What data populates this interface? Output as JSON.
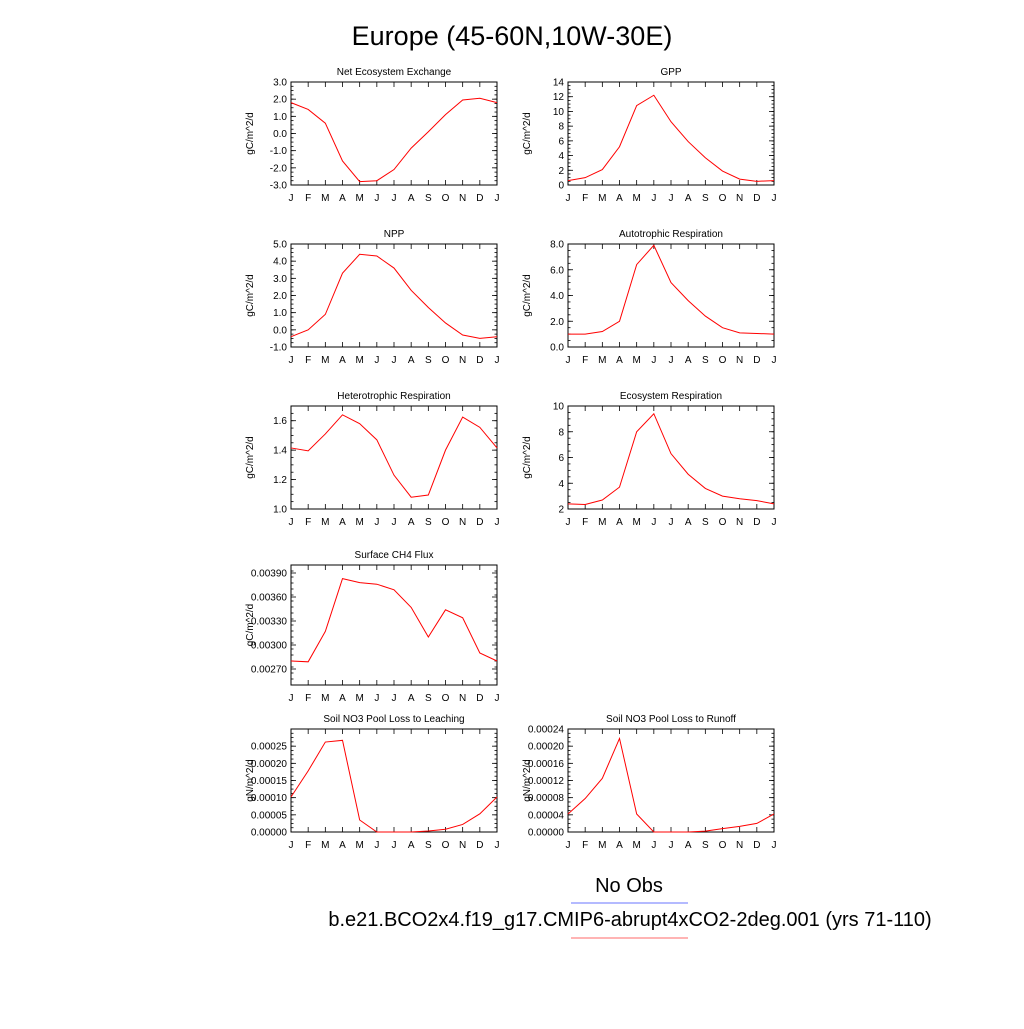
{
  "page": {
    "title": "Europe (45-60N,10W-30E)",
    "legend": {
      "entries": [
        {
          "label": "No Obs",
          "color": "#6a74ff"
        },
        {
          "label": "b.e21.BCO2x4.f19_g17.CMIP6-abrupt4xCO2-2deg.001 (yrs 71-110)",
          "color": "#ff6a6a"
        }
      ]
    }
  },
  "chart_data": [
    {
      "type": "line",
      "title": "Net Ecosystem Exchange",
      "ylabel": "gC/m^2/d",
      "categories": [
        "J",
        "F",
        "M",
        "A",
        "M",
        "J",
        "J",
        "A",
        "S",
        "O",
        "N",
        "D",
        "J"
      ],
      "ylim": [
        -3.0,
        3.0
      ],
      "yticks": [
        -3.0,
        -2.0,
        -1.0,
        0.0,
        1.0,
        2.0,
        3.0
      ],
      "yticklabels": [
        "-3.0",
        "-2.0",
        "-1.0",
        "0.0",
        "1.0",
        "2.0",
        "3.0"
      ],
      "series": [
        {
          "color": "#ff0000",
          "values": [
            1.8,
            1.4,
            0.6,
            -1.6,
            -2.8,
            -2.75,
            -2.1,
            -0.85,
            0.1,
            1.1,
            1.95,
            2.05,
            1.8
          ]
        }
      ]
    },
    {
      "type": "line",
      "title": "GPP",
      "ylabel": "gC/m^2/d",
      "categories": [
        "J",
        "F",
        "M",
        "A",
        "M",
        "J",
        "J",
        "A",
        "S",
        "O",
        "N",
        "D",
        "J"
      ],
      "ylim": [
        0,
        14
      ],
      "yticks": [
        0,
        2,
        4,
        6,
        8,
        10,
        12,
        14
      ],
      "yticklabels": [
        "0",
        "2",
        "4",
        "6",
        "8",
        "10",
        "12",
        "14"
      ],
      "series": [
        {
          "color": "#ff0000",
          "values": [
            0.6,
            1.0,
            2.1,
            5.2,
            10.8,
            12.2,
            8.6,
            5.9,
            3.7,
            1.9,
            0.8,
            0.5,
            0.6
          ]
        }
      ]
    },
    {
      "type": "line",
      "title": "NPP",
      "ylabel": "gC/m^2/d",
      "categories": [
        "J",
        "F",
        "M",
        "A",
        "M",
        "J",
        "J",
        "A",
        "S",
        "O",
        "N",
        "D",
        "J"
      ],
      "ylim": [
        -1.0,
        5.0
      ],
      "yticks": [
        -1.0,
        0.0,
        1.0,
        2.0,
        3.0,
        4.0,
        5.0
      ],
      "yticklabels": [
        "-1.0",
        "0.0",
        "1.0",
        "2.0",
        "3.0",
        "4.0",
        "5.0"
      ],
      "series": [
        {
          "color": "#ff0000",
          "values": [
            -0.4,
            0.0,
            0.9,
            3.3,
            4.4,
            4.3,
            3.6,
            2.3,
            1.3,
            0.4,
            -0.3,
            -0.5,
            -0.4
          ]
        }
      ]
    },
    {
      "type": "line",
      "title": "Autotrophic Respiration",
      "ylabel": "gC/m^2/d",
      "categories": [
        "J",
        "F",
        "M",
        "A",
        "M",
        "J",
        "J",
        "A",
        "S",
        "O",
        "N",
        "D",
        "J"
      ],
      "ylim": [
        0.0,
        8.0
      ],
      "yticks": [
        0.0,
        2.0,
        4.0,
        6.0,
        8.0
      ],
      "yticklabels": [
        "0.0",
        "2.0",
        "4.0",
        "6.0",
        "8.0"
      ],
      "series": [
        {
          "color": "#ff0000",
          "values": [
            1.0,
            1.0,
            1.2,
            2.0,
            6.4,
            7.9,
            5.0,
            3.6,
            2.4,
            1.5,
            1.1,
            1.05,
            1.0
          ]
        }
      ]
    },
    {
      "type": "line",
      "title": "Heterotrophic Respiration",
      "ylabel": "gC/m^2/d",
      "categories": [
        "J",
        "F",
        "M",
        "A",
        "M",
        "J",
        "J",
        "A",
        "S",
        "O",
        "N",
        "D",
        "J"
      ],
      "ylim": [
        1.0,
        1.7
      ],
      "yticks": [
        1.0,
        1.2,
        1.4,
        1.6
      ],
      "yticklabels": [
        "1.0",
        "1.2",
        "1.4",
        "1.6"
      ],
      "series": [
        {
          "color": "#ff0000",
          "values": [
            1.415,
            1.395,
            1.51,
            1.64,
            1.58,
            1.47,
            1.23,
            1.08,
            1.095,
            1.4,
            1.625,
            1.555,
            1.415
          ]
        }
      ]
    },
    {
      "type": "line",
      "title": "Ecosystem Respiration",
      "ylabel": "gC/m^2/d",
      "categories": [
        "J",
        "F",
        "M",
        "A",
        "M",
        "J",
        "J",
        "A",
        "S",
        "O",
        "N",
        "D",
        "J"
      ],
      "ylim": [
        2,
        10
      ],
      "yticks": [
        2,
        4,
        6,
        8,
        10
      ],
      "yticklabels": [
        "2",
        "4",
        "6",
        "8",
        "10"
      ],
      "series": [
        {
          "color": "#ff0000",
          "values": [
            2.4,
            2.35,
            2.7,
            3.7,
            8.0,
            9.4,
            6.3,
            4.7,
            3.6,
            3.0,
            2.8,
            2.65,
            2.4
          ]
        }
      ]
    },
    {
      "type": "line",
      "title": "Surface CH4 Flux",
      "ylabel": "gC/m^2/d",
      "categories": [
        "J",
        "F",
        "M",
        "A",
        "M",
        "J",
        "J",
        "A",
        "S",
        "O",
        "N",
        "D",
        "J"
      ],
      "ylim": [
        0.0025,
        0.004
      ],
      "yticks": [
        0.0027,
        0.003,
        0.0033,
        0.0036,
        0.0039
      ],
      "yticklabels": [
        "0.00270",
        "0.00300",
        "0.00330",
        "0.00360",
        "0.00390"
      ],
      "series": [
        {
          "color": "#ff0000",
          "values": [
            0.0028,
            0.00279,
            0.00317,
            0.00383,
            0.00378,
            0.00376,
            0.00369,
            0.00347,
            0.0031,
            0.00344,
            0.00334,
            0.0029,
            0.0028
          ]
        }
      ]
    },
    {
      "type": "line",
      "title": "Soil NO3 Pool Loss to Leaching",
      "ylabel": "gN/m^2/d",
      "categories": [
        "J",
        "F",
        "M",
        "A",
        "M",
        "J",
        "J",
        "A",
        "S",
        "O",
        "N",
        "D",
        "J"
      ],
      "ylim": [
        0.0,
        0.0003
      ],
      "yticks": [
        0.0,
        5e-05,
        0.0001,
        0.00015,
        0.0002,
        0.00025
      ],
      "yticklabels": [
        "0.00000",
        "0.00005",
        "0.00010",
        "0.00015",
        "0.00020",
        "0.00025"
      ],
      "series": [
        {
          "color": "#ff0000",
          "values": [
            0.000102,
            0.000178,
            0.000262,
            0.000267,
            3.5e-05,
            0.0,
            0.0,
            0.0,
            3e-06,
            8e-06,
            2.2e-05,
            5.3e-05,
            0.000102
          ]
        }
      ]
    },
    {
      "type": "line",
      "title": "Soil NO3 Pool Loss to Runoff",
      "ylabel": "gN/m^2/d",
      "categories": [
        "J",
        "F",
        "M",
        "A",
        "M",
        "J",
        "J",
        "A",
        "S",
        "O",
        "N",
        "D",
        "J"
      ],
      "ylim": [
        0.0,
        0.00024
      ],
      "yticks": [
        0.0,
        4e-05,
        8e-05,
        0.00012,
        0.00016,
        0.0002,
        0.00024
      ],
      "yticklabels": [
        "0.00000",
        "0.00004",
        "0.00008",
        "0.00012",
        "0.00016",
        "0.00020",
        "0.00024"
      ],
      "series": [
        {
          "color": "#ff0000",
          "values": [
            4.2e-05,
            7.8e-05,
            0.000125,
            0.000218,
            4.2e-05,
            0.0,
            0.0,
            0.0,
            2e-06,
            8e-06,
            1.3e-05,
            2e-05,
            4.2e-05
          ]
        }
      ]
    }
  ]
}
